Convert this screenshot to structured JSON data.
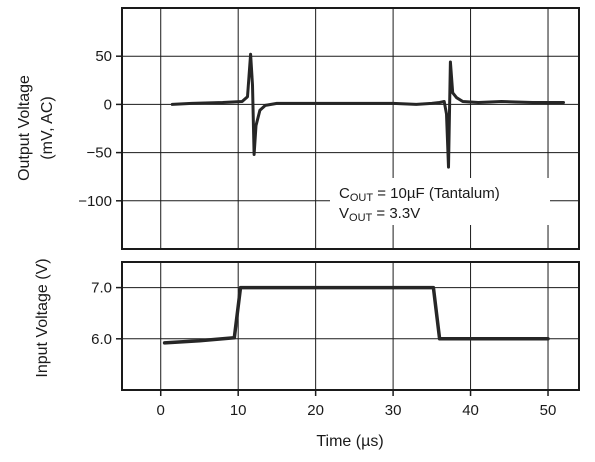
{
  "chart_data": [
    {
      "type": "line",
      "title": "",
      "ylabel_line1": "Output Voltage",
      "ylabel_line2": "(mV, AC)",
      "xlim": [
        -5,
        54
      ],
      "ylim": [
        -150,
        100
      ],
      "grid": true,
      "xgrid": [
        0,
        10,
        20,
        30,
        40,
        50
      ],
      "ygrid": [
        -150,
        -100,
        -50,
        0,
        50
      ],
      "yticks": [
        {
          "value": 50,
          "label": "50"
        },
        {
          "value": 0,
          "label": "0"
        },
        {
          "value": -50,
          "label": "−50"
        },
        {
          "value": -100,
          "label": "−100"
        }
      ],
      "annotation": {
        "cout_main": "C",
        "cout_sub": "OUT",
        "cout_rest": " = 10µF (Tantalum)",
        "vout_main": "V",
        "vout_sub": "OUT",
        "vout_rest": " = 3.3V"
      },
      "series": [
        {
          "x": [
            1.5,
            4,
            8,
            10.5,
            11.2,
            11.6,
            11.85,
            12.05,
            12.3,
            12.8,
            13.5,
            15,
            20,
            30,
            33,
            35,
            36,
            36.6,
            36.9,
            37.15,
            37.4,
            37.7,
            38.2,
            39,
            41,
            44,
            48,
            52
          ],
          "y": [
            0,
            1,
            2,
            3,
            8,
            52,
            20,
            -52,
            -22,
            -6,
            -1,
            1,
            1,
            1,
            0,
            1,
            2,
            3,
            -10,
            -65,
            44,
            12,
            7,
            3,
            2,
            3,
            2,
            2
          ]
        }
      ]
    },
    {
      "type": "line",
      "title": "",
      "ylabel": "Input Voltage (V)",
      "xlabel": "Time (µs)",
      "xlim": [
        -5,
        54
      ],
      "ylim": [
        5.0,
        7.5
      ],
      "grid": true,
      "xgrid": [
        0,
        10,
        20,
        30,
        40,
        50
      ],
      "ygrid": [
        6.0,
        7.0
      ],
      "yticks": [
        {
          "value": 7.0,
          "label": "7.0"
        },
        {
          "value": 6.0,
          "label": "6.0"
        }
      ],
      "xticks": [
        {
          "value": 0,
          "label": "0"
        },
        {
          "value": 10,
          "label": "10"
        },
        {
          "value": 20,
          "label": "20"
        },
        {
          "value": 30,
          "label": "30"
        },
        {
          "value": 40,
          "label": "40"
        },
        {
          "value": 50,
          "label": "50"
        }
      ],
      "series": [
        {
          "x": [
            0.5,
            5,
            9.5,
            10.3,
            35.2,
            36,
            50
          ],
          "y": [
            5.92,
            5.96,
            6.02,
            7.0,
            7.0,
            6.0,
            6.0
          ]
        }
      ]
    }
  ]
}
